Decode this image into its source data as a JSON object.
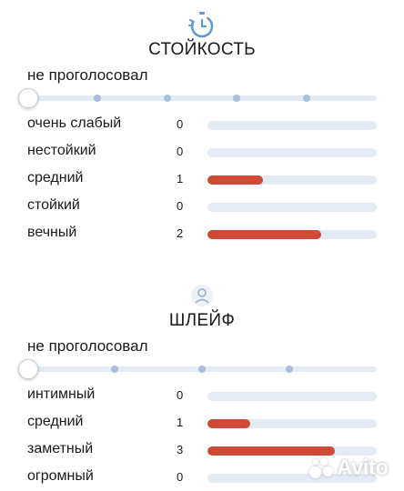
{
  "sections": [
    {
      "icon": "stopwatch-icon",
      "title": "СТОЙКОСТЬ",
      "vote_status": "не проголосовал",
      "slider_stops": 5,
      "options": [
        {
          "label": "очень слабый",
          "count": "0",
          "share": 0
        },
        {
          "label": "нестойкий",
          "count": "0",
          "share": 0
        },
        {
          "label": "средний",
          "count": "1",
          "share": 0.33
        },
        {
          "label": "стойкий",
          "count": "0",
          "share": 0
        },
        {
          "label": "вечный",
          "count": "2",
          "share": 0.67
        }
      ]
    },
    {
      "icon": "trail-person-icon",
      "title": "ШЛЕЙФ",
      "vote_status": "не проголосовал",
      "slider_stops": 4,
      "options": [
        {
          "label": "интимный",
          "count": "0",
          "share": 0
        },
        {
          "label": "средний",
          "count": "1",
          "share": 0.25
        },
        {
          "label": "заметный",
          "count": "3",
          "share": 0.75
        },
        {
          "label": "огромный",
          "count": "0",
          "share": 0
        }
      ]
    }
  ],
  "watermark": {
    "text": "Avito",
    "icon": "avito-logo-icon"
  },
  "colors": {
    "fill": "#cf4a36",
    "track": "#e4ebf5",
    "dot": "#a7bedc",
    "icon_blue": "#5b9bd5"
  }
}
